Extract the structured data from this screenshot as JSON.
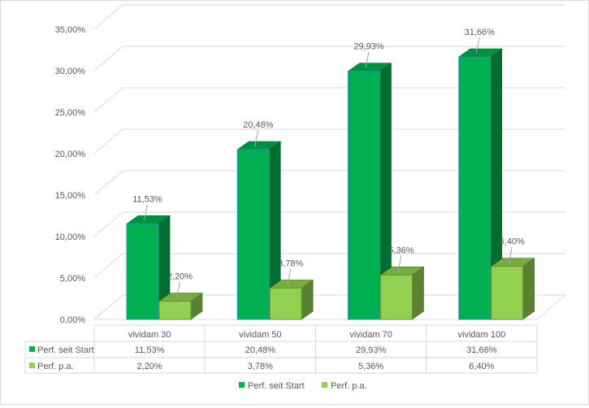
{
  "chart_data": {
    "type": "bar",
    "title": "",
    "categories": [
      "vividam 30",
      "vividam 50",
      "vividam 70",
      "vividam 100"
    ],
    "series": [
      {
        "name": "Perf. seit Start",
        "values": [
          11.53,
          20.48,
          29.93,
          31.66
        ],
        "labels": [
          "11,53%",
          "20,48%",
          "29,93%",
          "31,66%"
        ],
        "color": "#00b050"
      },
      {
        "name": "Perf. p.a.",
        "values": [
          2.2,
          3.78,
          5.36,
          6.4
        ],
        "labels": [
          "2,20%",
          "3,78%",
          "5,36%",
          "6,40%"
        ],
        "color": "#92d050"
      }
    ],
    "y_ticks": [
      "0,00%",
      "5,00%",
      "10,00%",
      "15,00%",
      "20,00%",
      "25,00%",
      "30,00%",
      "35,00%"
    ],
    "ylim": [
      0,
      35
    ],
    "grid": true,
    "legend_position": "bottom",
    "data_table": true,
    "three_d": true
  }
}
